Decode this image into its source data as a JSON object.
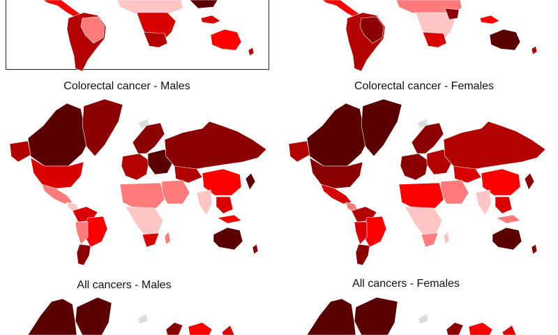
{
  "figure": {
    "colorectal_males": "Colorectal cancer - Males",
    "colorectal_females": "Colorectal cancer - Females",
    "all_males": "All cancers - Males",
    "all_females": "All cancers - Females"
  },
  "colors": {
    "darkest": "#5a0000",
    "dark": "#8b0000",
    "medium_dark": "#b30000",
    "medium": "#d90000",
    "bright": "#ff0000",
    "light": "#ff7a7a",
    "lightest": "#ffc4c4",
    "no_data": "#dddddd",
    "border": "#ffffff",
    "frame": "#222222"
  }
}
